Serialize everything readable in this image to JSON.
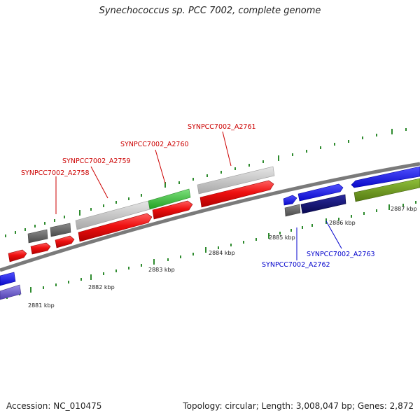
{
  "title": "Synechococcus sp. PCC 7002, complete genome",
  "accession": "Accession: NC_010475",
  "summary": "Topology: circular; Length: 3,008,047 bp; Genes: 2,872",
  "colors": {
    "red": "#e8101a",
    "grey": "#bdbdbd",
    "dark_grey": "#666666",
    "green": "#3cc43c",
    "blue": "#1a1af0",
    "navy": "#10107a",
    "olive": "#6e9a1e",
    "violet": "#6a5acd",
    "label_red": "#cc0000",
    "label_blue": "#0000cc",
    "tick": "#2e8b2e"
  },
  "scale_labels": [
    "2881 kbp",
    "2882 kbp",
    "2883 kbp",
    "2884 kbp",
    "2885 kbp",
    "2886 kbp",
    "2887 kbp"
  ],
  "gene_labels": {
    "a2758": "SYNPCC7002_A2758",
    "a2759": "SYNPCC7002_A2759",
    "a2760": "SYNPCC7002_A2760",
    "a2761": "SYNPCC7002_A2761",
    "a2762": "SYNPCC7002_A2762",
    "a2763": "SYNPCC7002_A2763"
  }
}
